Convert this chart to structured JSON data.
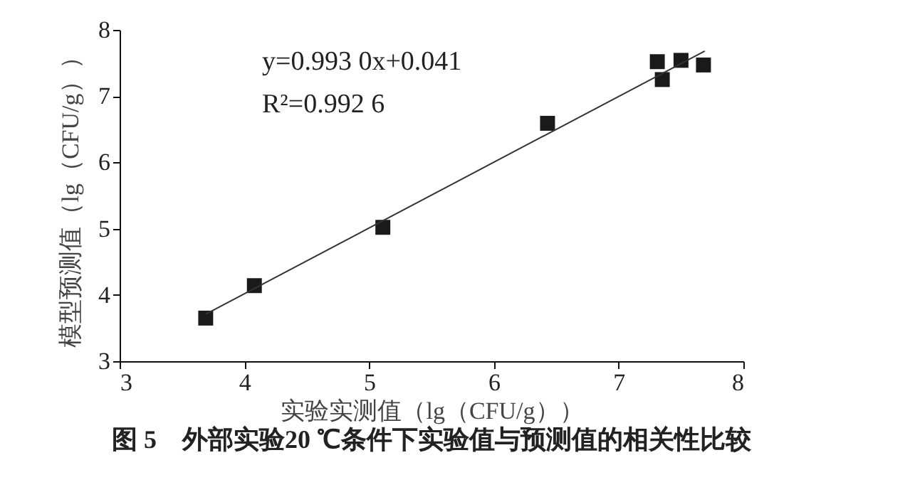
{
  "chart_data": {
    "type": "scatter",
    "title": "图 5　外部实验20 ℃条件下实验值与预测值的相关性比较",
    "xlabel": "实验实测值（lg（CFU/g））",
    "ylabel": "模型预测值（lg（CFU/g））",
    "annotations": [
      "y=0.993 0x+0.041",
      "R²=0.992 6"
    ],
    "series": [
      {
        "color": "#1a1a1a",
        "marker": "square",
        "x": [
          3.69,
          4.08,
          5.11,
          6.43,
          7.31,
          7.35,
          7.5,
          7.68
        ],
        "values": [
          3.65,
          4.14,
          5.02,
          6.59,
          7.52,
          7.25,
          7.54,
          7.47
        ]
      },
      {
        "type": "line",
        "color": "#333333",
        "x": [
          3.69,
          7.69
        ],
        "values": [
          3.71,
          7.68
        ]
      }
    ],
    "xlim": [
      3,
      8
    ],
    "ylim": [
      3,
      8
    ],
    "xticks": [
      3,
      4,
      5,
      6,
      7,
      8
    ],
    "yticks": [
      3,
      4,
      5,
      6,
      7,
      8
    ],
    "grid": false
  }
}
